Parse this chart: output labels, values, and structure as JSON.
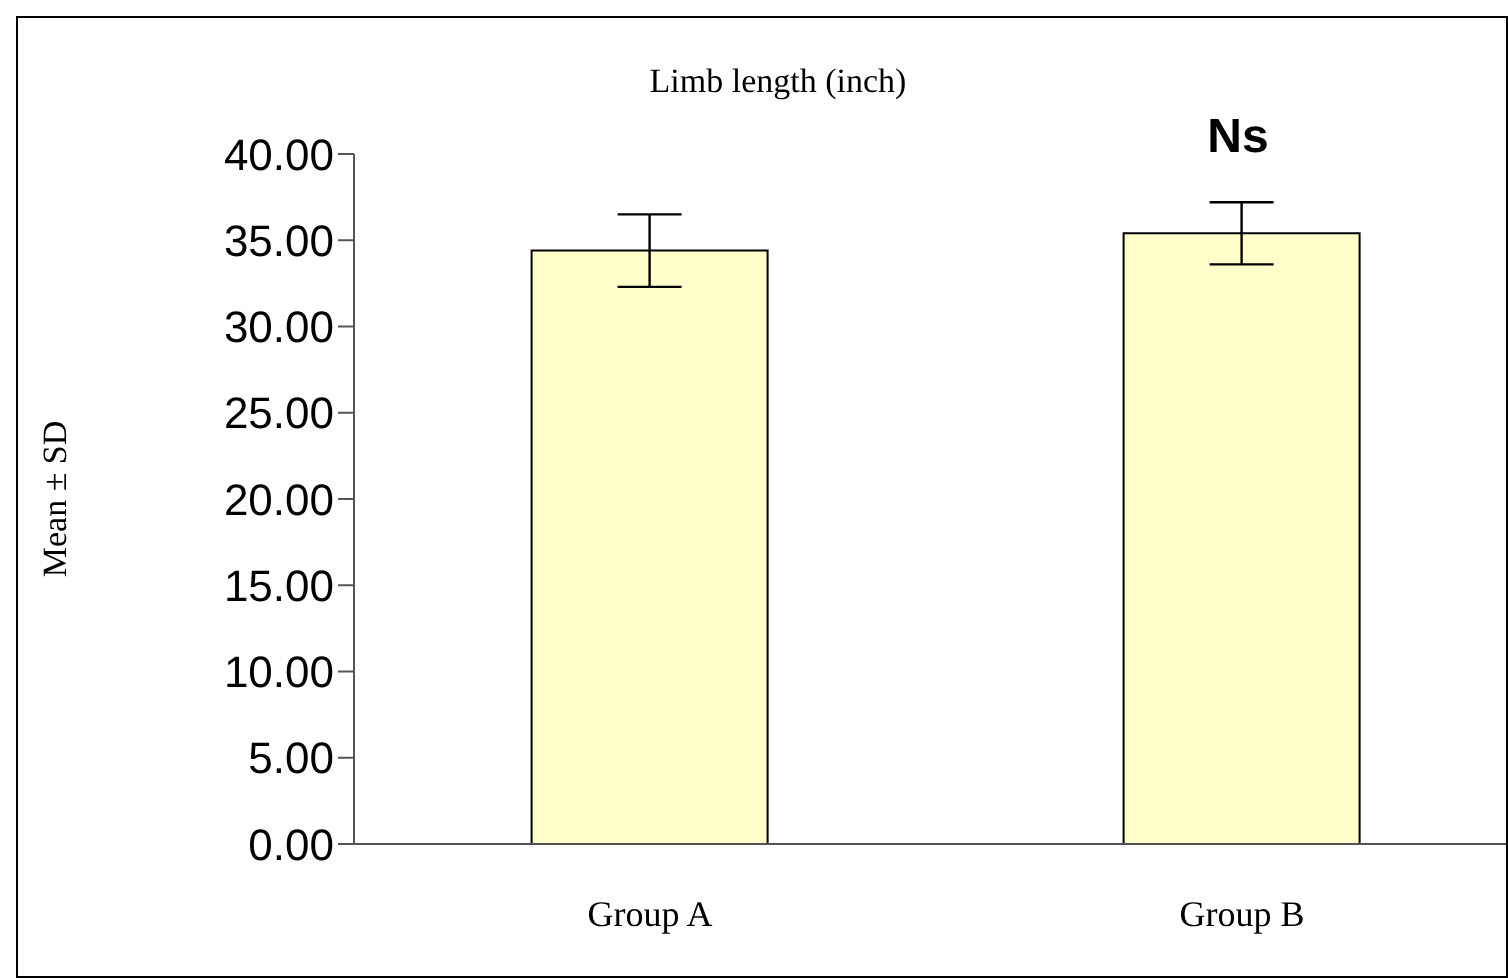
{
  "chart_data": {
    "type": "bar",
    "title": "Limb length (inch)",
    "ylabel": "Mean ± SD",
    "categories": [
      "Group A",
      "Group B"
    ],
    "values": [
      34.4,
      35.4
    ],
    "errors": [
      2.1,
      1.8
    ],
    "color": "#ffffcc",
    "ylim": [
      0,
      40
    ],
    "yticks": [
      {
        "value": 0,
        "label": "0.00"
      },
      {
        "value": 5,
        "label": "5.00"
      },
      {
        "value": 10,
        "label": "10.00"
      },
      {
        "value": 15,
        "label": "15.00"
      },
      {
        "value": 20,
        "label": "20.00"
      },
      {
        "value": 25,
        "label": "25.00"
      },
      {
        "value": 30,
        "label": "30.00"
      },
      {
        "value": 35,
        "label": "35.00"
      },
      {
        "value": 40,
        "label": "40.00"
      }
    ],
    "annotations": [
      "Ns"
    ],
    "grid": false,
    "legend": false
  }
}
